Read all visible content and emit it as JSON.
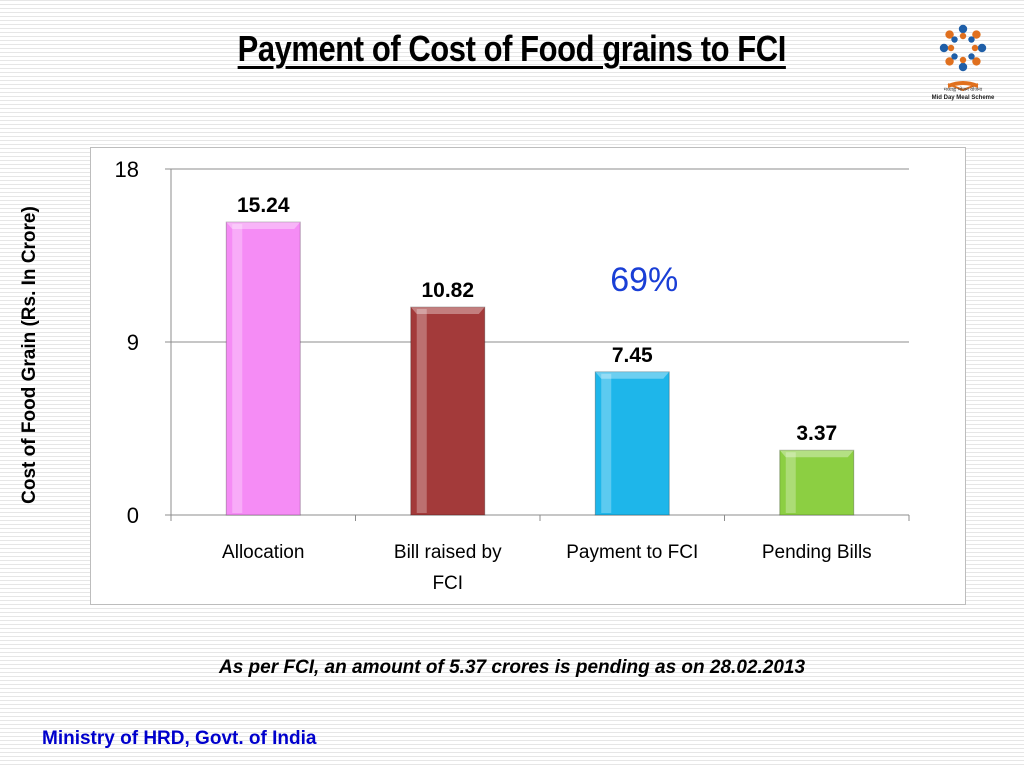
{
  "title": "Payment of Cost of Food grains to FCI",
  "logo": {
    "name": "mid-day-meal-logo",
    "caption_line1": "मध्याह्न भोजन योजना",
    "caption_line2": "Mid Day Meal Scheme"
  },
  "footnote": "As per FCI, an amount of 5.37 crores is pending as on 28.02.2013",
  "footer": "Ministry of HRD, Govt. of India",
  "chart_data": {
    "type": "bar",
    "title": "",
    "xlabel": "",
    "ylabel": "Cost of Food Grain (Rs. In Crore)",
    "ylim": [
      0,
      18
    ],
    "yticks": [
      "0",
      "9",
      "18"
    ],
    "grid": true,
    "categories": [
      "Allocation",
      "Bill raised by FCI",
      "Payment to FCI",
      "Pending Bills"
    ],
    "category_lines": [
      [
        "Allocation"
      ],
      [
        "Bill raised by",
        "FCI"
      ],
      [
        "Payment to FCI"
      ],
      [
        "Pending Bills"
      ]
    ],
    "values": [
      15.24,
      10.82,
      7.45,
      3.37
    ],
    "value_labels": [
      "15.24",
      "10.82",
      "7.45",
      "3.37"
    ],
    "bar_colors": [
      "#f58cf5",
      "#a33a3a",
      "#1eb6ea",
      "#8ccf42"
    ],
    "annotation": {
      "text": "69%",
      "color": "#1a3fd6"
    }
  }
}
